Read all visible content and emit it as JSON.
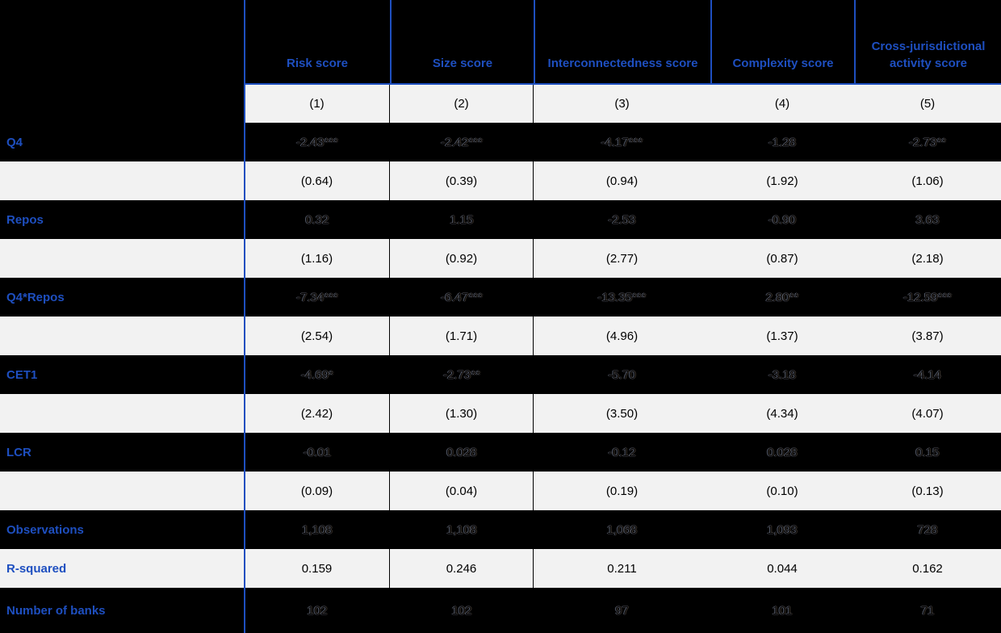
{
  "table": {
    "columns": [
      {
        "header": "Risk score",
        "number": "(1)"
      },
      {
        "header": "Size score",
        "number": "(2)"
      },
      {
        "header": "Interconnectedness score",
        "number": "(3)"
      },
      {
        "header": "Complexity score",
        "number": "(4)"
      },
      {
        "header": "Cross-jurisdictional activity score",
        "number": "(5)"
      }
    ],
    "rows": [
      {
        "label": "Q4",
        "type": "coef",
        "values": [
          "-2.43***",
          "-2.42***",
          "-4.17***",
          "-1.28",
          "-2.73**"
        ]
      },
      {
        "label": "",
        "type": "se",
        "values": [
          "(0.64)",
          "(0.39)",
          "(0.94)",
          "(1.92)",
          "(1.06)"
        ]
      },
      {
        "label": "Repos",
        "type": "coef",
        "values": [
          "0.32",
          "1.15",
          "-2.53",
          "-0.90",
          "3.63"
        ]
      },
      {
        "label": "",
        "type": "se",
        "values": [
          "(1.16)",
          "(0.92)",
          "(2.77)",
          "(0.87)",
          "(2.18)"
        ]
      },
      {
        "label": "Q4*Repos",
        "type": "coef",
        "values": [
          "-7.34***",
          "-6.47***",
          "-13.35***",
          "2.80**",
          "-12.59***"
        ]
      },
      {
        "label": "",
        "type": "se",
        "values": [
          "(2.54)",
          "(1.71)",
          "(4.96)",
          "(1.37)",
          "(3.87)"
        ]
      },
      {
        "label": "CET1",
        "type": "coef",
        "values": [
          "-4.69*",
          "-2.73**",
          "-5.70",
          "-3.18",
          "-4.14"
        ]
      },
      {
        "label": "",
        "type": "se",
        "values": [
          "(2.42)",
          "(1.30)",
          "(3.50)",
          "(4.34)",
          "(4.07)"
        ]
      },
      {
        "label": "LCR",
        "type": "coef",
        "values": [
          "-0.01",
          "0.028",
          "-0.12",
          "0.028",
          "0.15"
        ]
      },
      {
        "label": "",
        "type": "se",
        "values": [
          "(0.09)",
          "(0.04)",
          "(0.19)",
          "(0.10)",
          "(0.13)"
        ]
      },
      {
        "label": "Observations",
        "type": "stat-dark",
        "values": [
          "1,108",
          "1,108",
          "1,068",
          "1,093",
          "728"
        ]
      },
      {
        "label": "R-squared",
        "type": "stat-light",
        "values": [
          "0.159",
          "0.246",
          "0.211",
          "0.044",
          "0.162"
        ]
      },
      {
        "label": "Number of banks",
        "type": "stat-dark",
        "values": [
          "102",
          "102",
          "97",
          "101",
          "71"
        ]
      }
    ],
    "colors": {
      "accent_blue": "#1e4fc0",
      "row_dark_bg": "#000000",
      "row_light_bg": "#f2f2f2",
      "light_row_text": "#000000"
    }
  }
}
